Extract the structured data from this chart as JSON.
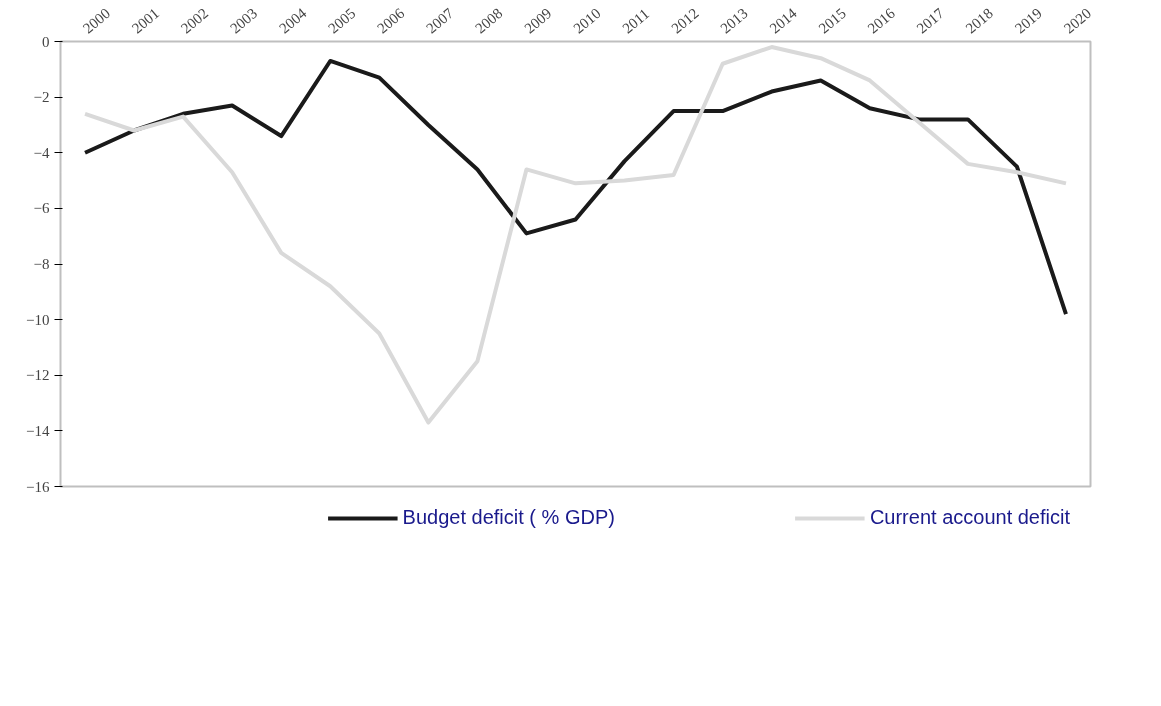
{
  "chart_data": {
    "type": "line",
    "categories": [
      "2000",
      "2001",
      "2002",
      "2003",
      "2004",
      "2005",
      "2006",
      "2007",
      "2008",
      "2009",
      "2010",
      "2011",
      "2012",
      "2013",
      "2014",
      "2015",
      "2016",
      "2017",
      "2018",
      "2019",
      "2020"
    ],
    "series": [
      {
        "name": "Budget deficit ( % GDP)",
        "color": "#1a1a1a",
        "values": [
          -4.0,
          -3.2,
          -2.6,
          -2.3,
          -3.4,
          -0.7,
          -1.3,
          -3.0,
          -4.6,
          -6.9,
          -6.4,
          -4.3,
          -2.5,
          -2.5,
          -1.8,
          -1.4,
          -2.4,
          -2.8,
          -2.8,
          -4.5,
          -9.8
        ]
      },
      {
        "name": "Current account deficit",
        "color": "#d9d9d9",
        "values": [
          -2.6,
          -3.2,
          -2.7,
          -4.7,
          -7.6,
          -8.8,
          -10.5,
          -13.7,
          -11.5,
          -4.6,
          -5.1,
          -5.0,
          -4.8,
          -0.8,
          -0.2,
          -0.6,
          -1.4,
          -2.9,
          -4.4,
          -4.7,
          -5.1
        ]
      }
    ],
    "ylim": [
      -16,
      0
    ],
    "yticks": [
      -16,
      -14,
      -12,
      -10,
      -8,
      -6,
      -4,
      -2,
      0
    ],
    "grid": false,
    "legend": "bottom",
    "line_style": "solid",
    "marker": "none"
  }
}
